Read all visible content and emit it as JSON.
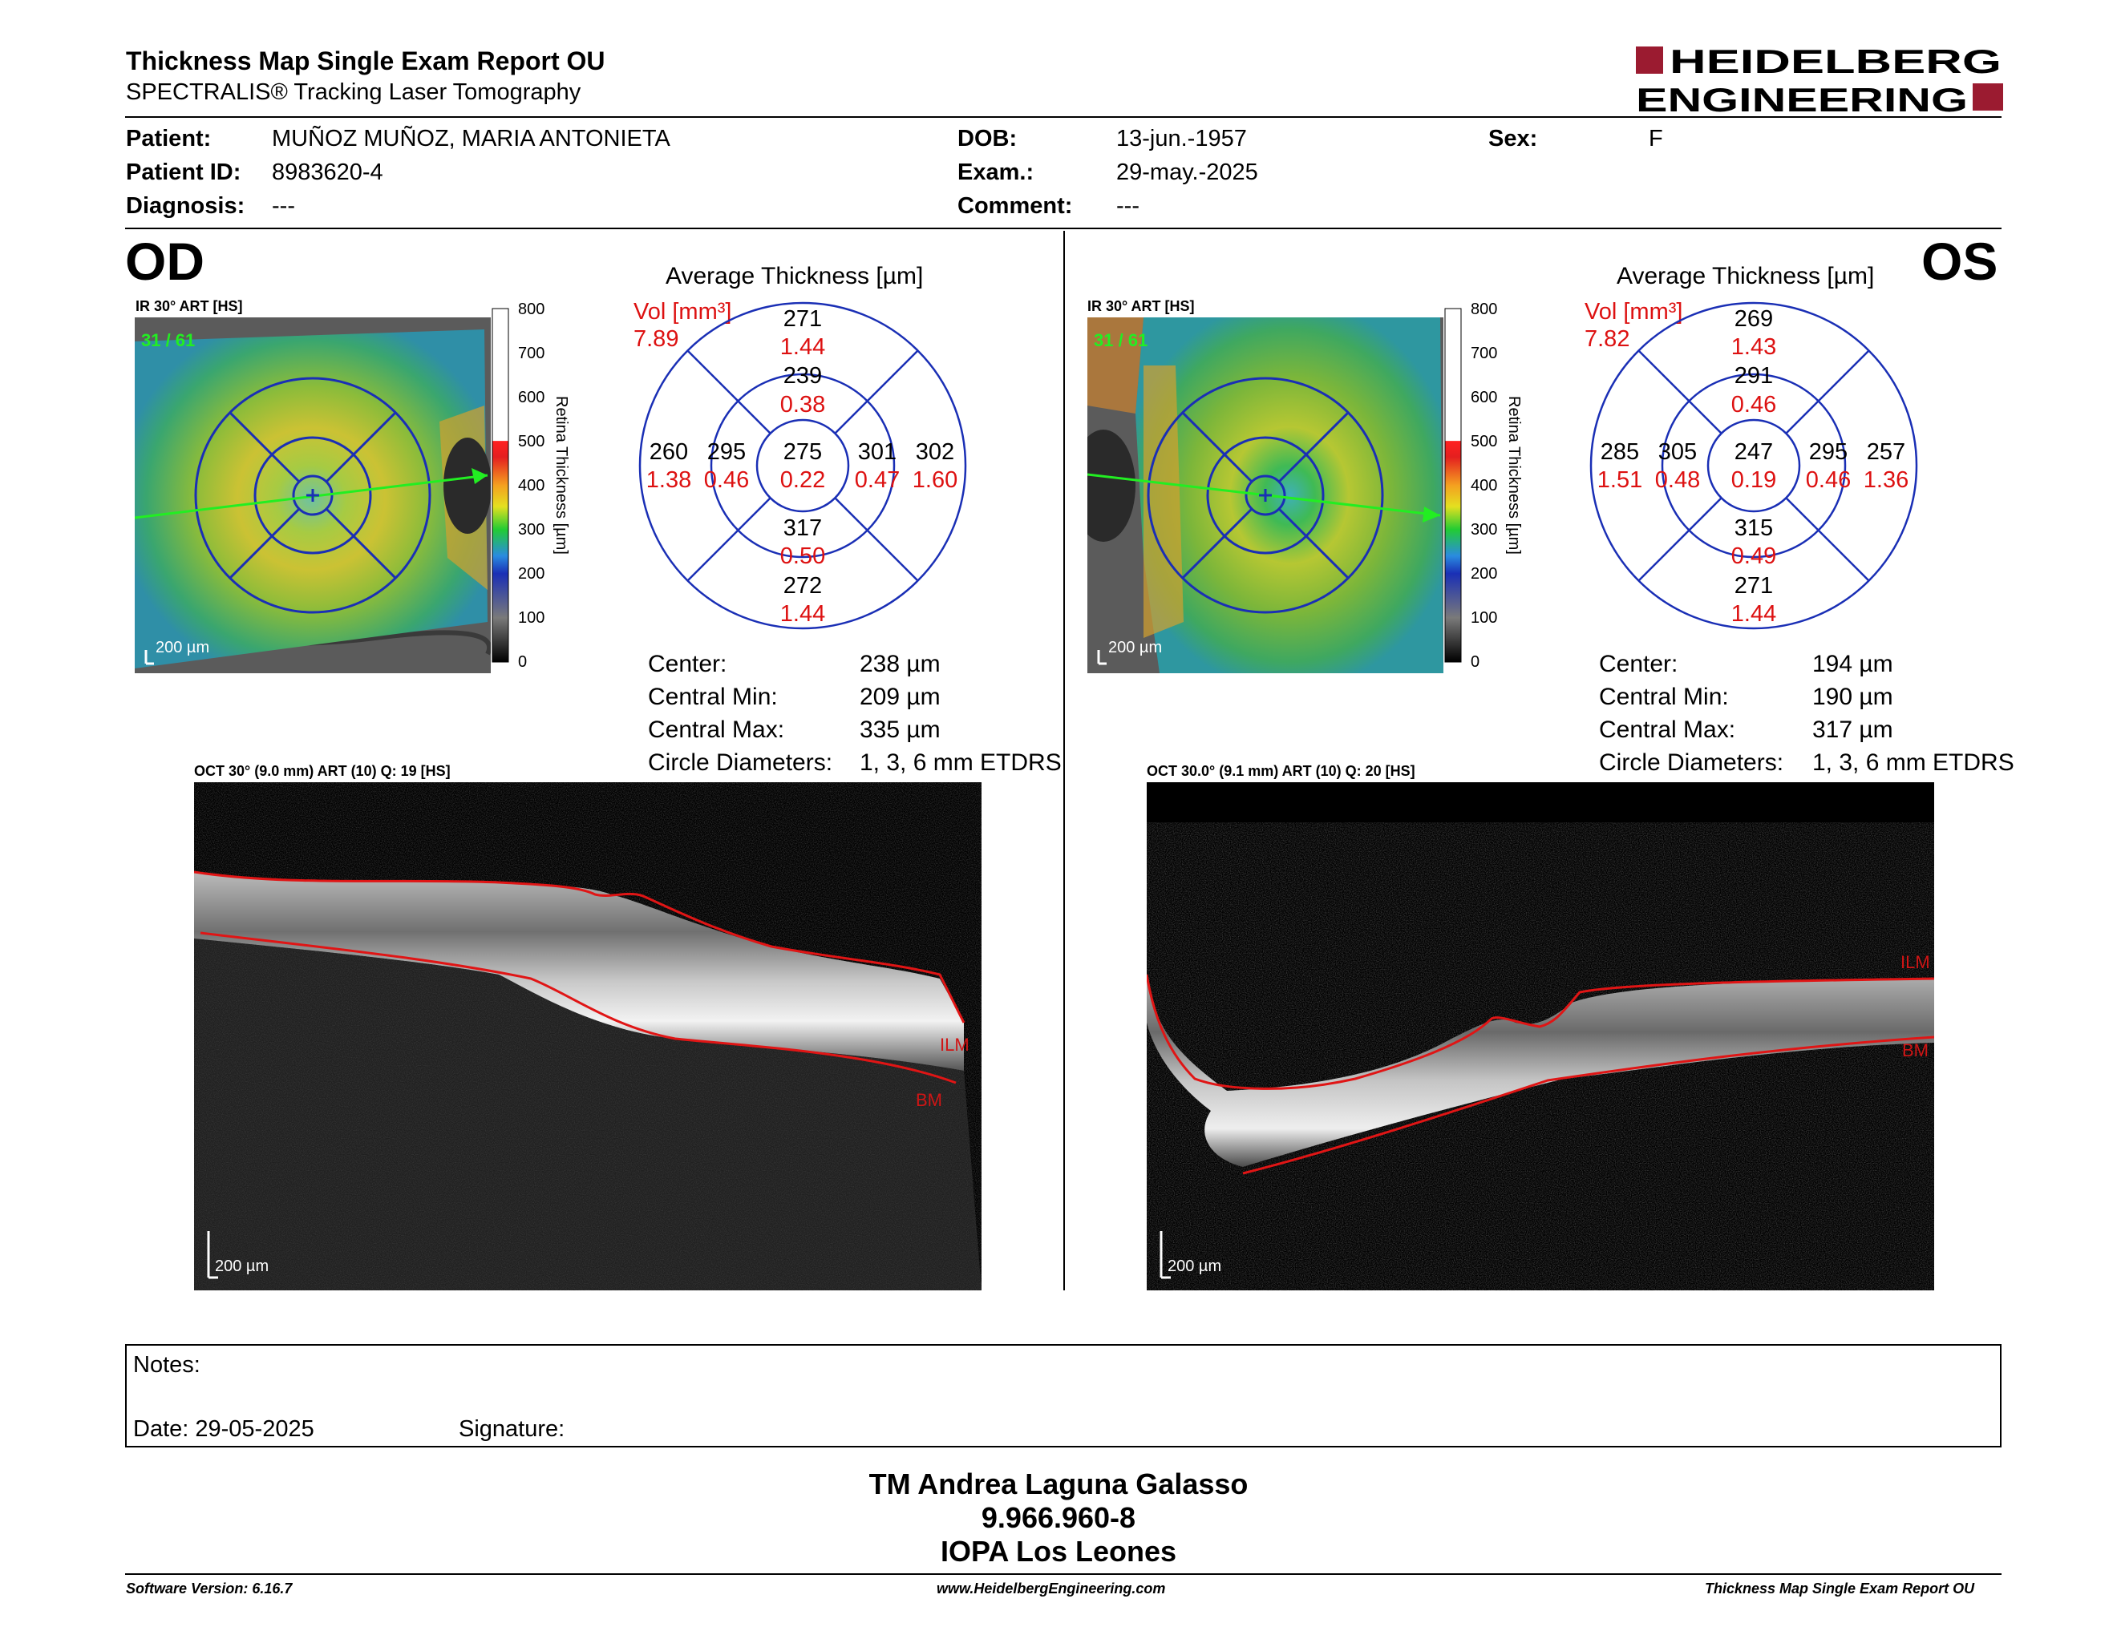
{
  "header": {
    "title": "Thickness Map Single Exam Report OU",
    "subtitle": "SPECTRALIS® Tracking Laser Tomography",
    "logo_line1": "HEIDELBERG",
    "logo_line2": "ENGINEERING"
  },
  "patient": {
    "patient_label": "Patient:",
    "patient_value": "MUÑOZ MUÑOZ, MARIA ANTONIETA",
    "id_label": "Patient ID:",
    "id_value": "8983620-4",
    "diagnosis_label": "Diagnosis:",
    "diagnosis_value": "---",
    "dob_label": "DOB:",
    "dob_value": "13-jun.-1957",
    "exam_label": "Exam.:",
    "exam_value": "29-may.-2025",
    "comment_label": "Comment:",
    "comment_value": "---",
    "sex_label": "Sex:",
    "sex_value": "F"
  },
  "colorbar": {
    "ticks": [
      "800",
      "700",
      "600",
      "500",
      "400",
      "300",
      "200",
      "100",
      "0"
    ],
    "label": "Retina Thickness [µm]"
  },
  "od": {
    "eye": "OD",
    "ir_label": "IR 30° ART [HS]",
    "frame_counter": "31 / 61",
    "scale": "200 µm",
    "avg_title": "Average Thickness [µm]",
    "vol_label": "Vol [mm³]",
    "vol_value": "7.89",
    "sectors": {
      "outer_top": [
        "271",
        "1.44"
      ],
      "inner_top": [
        "239",
        "0.38"
      ],
      "outer_left": [
        "260",
        "1.38"
      ],
      "inner_left": [
        "295",
        "0.46"
      ],
      "center": [
        "275",
        "0.22"
      ],
      "inner_right": [
        "301",
        "0.47"
      ],
      "outer_right": [
        "302",
        "1.60"
      ],
      "inner_bottom": [
        "317",
        "0.50"
      ],
      "outer_bottom": [
        "272",
        "1.44"
      ]
    },
    "stats": [
      {
        "label": "Center:",
        "value": "238 µm"
      },
      {
        "label": "Central Min:",
        "value": "209 µm"
      },
      {
        "label": "Central Max:",
        "value": "335 µm"
      },
      {
        "label": "Circle Diameters:",
        "value": "1, 3, 6 mm ETDRS"
      }
    ],
    "oct_label": "OCT 30° (9.0 mm) ART (10) Q: 19 [HS]",
    "oct_scale": "200 µm",
    "ilm": "ILM",
    "bm": "BM"
  },
  "os": {
    "eye": "OS",
    "ir_label": "IR 30° ART [HS]",
    "frame_counter": "31 / 61",
    "scale": "200 µm",
    "avg_title": "Average Thickness [µm]",
    "vol_label": "Vol [mm³]",
    "vol_value": "7.82",
    "sectors": {
      "outer_top": [
        "269",
        "1.43"
      ],
      "inner_top": [
        "291",
        "0.46"
      ],
      "outer_left": [
        "285",
        "1.51"
      ],
      "inner_left": [
        "305",
        "0.48"
      ],
      "center": [
        "247",
        "0.19"
      ],
      "inner_right": [
        "295",
        "0.46"
      ],
      "outer_right": [
        "257",
        "1.36"
      ],
      "inner_bottom": [
        "315",
        "0.49"
      ],
      "outer_bottom": [
        "271",
        "1.44"
      ]
    },
    "stats": [
      {
        "label": "Center:",
        "value": "194 µm"
      },
      {
        "label": "Central Min:",
        "value": "190 µm"
      },
      {
        "label": "Central Max:",
        "value": "317 µm"
      },
      {
        "label": "Circle Diameters:",
        "value": "1, 3, 6 mm ETDRS"
      }
    ],
    "oct_label": "OCT 30.0° (9.1 mm) ART (10) Q: 20 [HS]",
    "oct_scale": "200 µm",
    "ilm": "ILM",
    "bm": "BM"
  },
  "notes": {
    "notes_label": "Notes:",
    "date_label": "Date: 29-05-2025",
    "signature_label": "Signature:"
  },
  "footer": {
    "name": "TM Andrea Laguna Galasso",
    "id": "9.966.960-8",
    "org": "IOPA Los Leones",
    "software": "Software Version: 6.16.7",
    "website": "www.HeidelbergEngineering.com",
    "report_name": "Thickness Map Single Exam Report OU"
  },
  "colors": {
    "red": "#dd1111",
    "blue": "#1a2fb5",
    "green": "#22ee22",
    "logo_red": "#9b1b30"
  }
}
